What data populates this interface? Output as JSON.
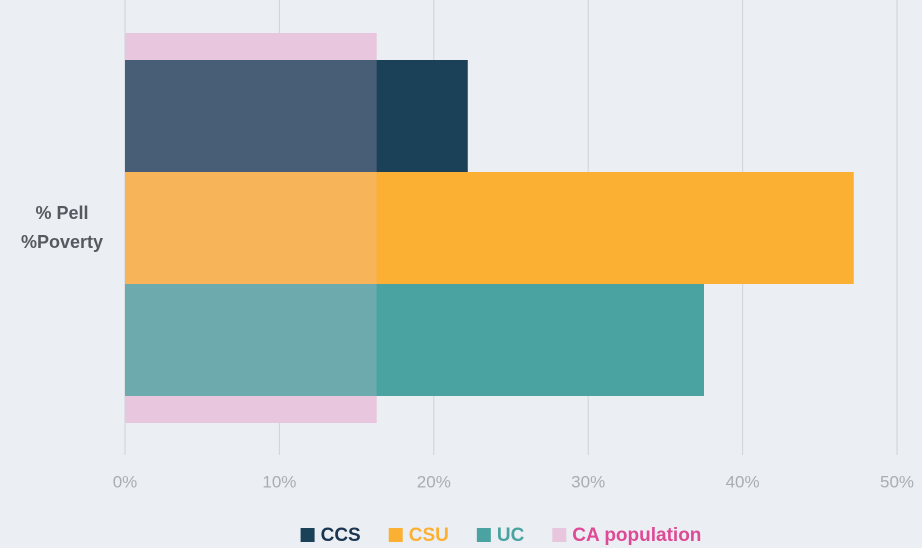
{
  "chart_data": {
    "type": "bar",
    "orientation": "horizontal",
    "categories": [
      [
        "% Pell",
        "%Poverty"
      ]
    ],
    "series": [
      {
        "name": "CCS",
        "color": "#1b4159",
        "values": [
          22.2
        ]
      },
      {
        "name": "CSU",
        "color": "#fbb034",
        "values": [
          47.2
        ]
      },
      {
        "name": "UC",
        "color": "#4aa3a0",
        "values": [
          37.5
        ]
      }
    ],
    "reference": {
      "name": "CA population",
      "color": "#e8c6dd",
      "label_color": "#de4a95",
      "values": [
        16.3
      ]
    },
    "xlim": [
      0,
      50
    ],
    "xticks": [
      {
        "value": 0,
        "label": "0%"
      },
      {
        "value": 10,
        "label": "10%"
      },
      {
        "value": 20,
        "label": "20%"
      },
      {
        "value": 30,
        "label": "30%"
      },
      {
        "value": 40,
        "label": "40%"
      },
      {
        "value": 50,
        "label": "50%"
      }
    ],
    "grid": true,
    "legend": "bottom"
  }
}
